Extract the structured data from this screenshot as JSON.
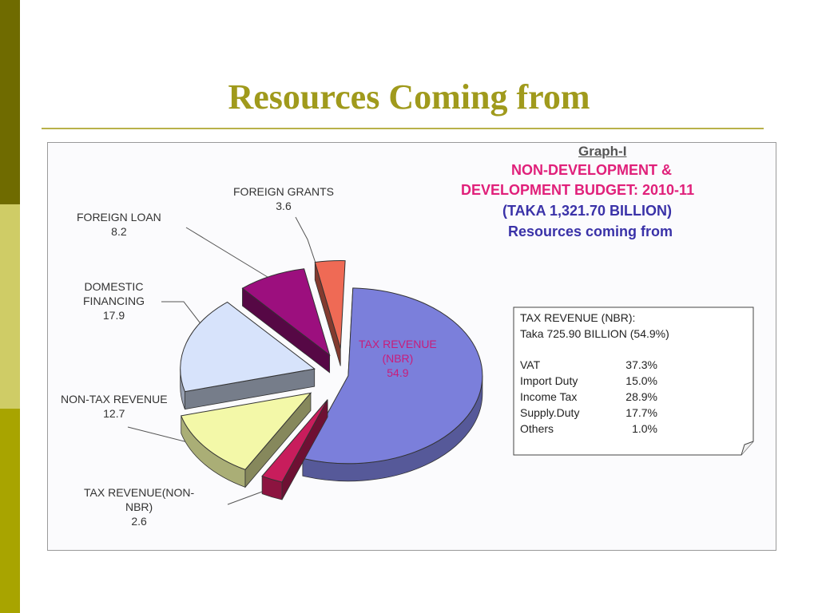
{
  "slide": {
    "title": "Resources Coming from"
  },
  "graph": {
    "id": "Graph-I",
    "title_lines": [
      "NON-DEVELOPMENT &",
      "DEVELOPMENT BUDGET: 2010-11",
      "(TAKA 1,321.70 BILLION)",
      "Resources coming from"
    ]
  },
  "chart_data": {
    "type": "pie",
    "title": "NON-DEVELOPMENT & DEVELOPMENT BUDGET: 2010-11 (TAKA 1,321.70 BILLION) Resources coming from",
    "unit": "%",
    "slices": [
      {
        "name": "TAX REVENUE (NBR)",
        "label_lines": [
          "TAX REVENUE",
          "(NBR)"
        ],
        "value": 54.9,
        "value_text": "54.9",
        "color": "#7b7fdb"
      },
      {
        "name": "TAX REVENUE(NON-NBR)",
        "label_lines": [
          "TAX REVENUE(NON-",
          "NBR)"
        ],
        "value": 2.6,
        "value_text": "2.6",
        "color": "#c81d5c"
      },
      {
        "name": "NON-TAX REVENUE",
        "label_lines": [
          "NON-TAX REVENUE"
        ],
        "value": 12.7,
        "value_text": "12.7",
        "color": "#f3f8a8"
      },
      {
        "name": "DOMESTIC FINANCING",
        "label_lines": [
          "DOMESTIC",
          "FINANCING"
        ],
        "value": 17.9,
        "value_text": "17.9",
        "color": "#d7e3fb"
      },
      {
        "name": "FOREIGN LOAN",
        "label_lines": [
          "FOREIGN LOAN"
        ],
        "value": 8.2,
        "value_text": "8.2",
        "color": "#9c0f7e"
      },
      {
        "name": "FOREIGN GRANTS",
        "label_lines": [
          "FOREIGN GRANTS"
        ],
        "value": 3.6,
        "value_text": "3.6",
        "color": "#ef6a55"
      }
    ],
    "note": {
      "heading": "TAX REVENUE (NBR):",
      "subheading": "Taka 725.90 BILLION  (54.9%)",
      "items": [
        {
          "name": "VAT",
          "value": "37.3%"
        },
        {
          "name": "Import Duty",
          "value": "15.0%"
        },
        {
          "name": "Income Tax",
          "value": "28.9%"
        },
        {
          "name": "Supply.Duty",
          "value": "17.7%"
        },
        {
          "name": "Others",
          "value": "1.0%"
        }
      ]
    }
  }
}
